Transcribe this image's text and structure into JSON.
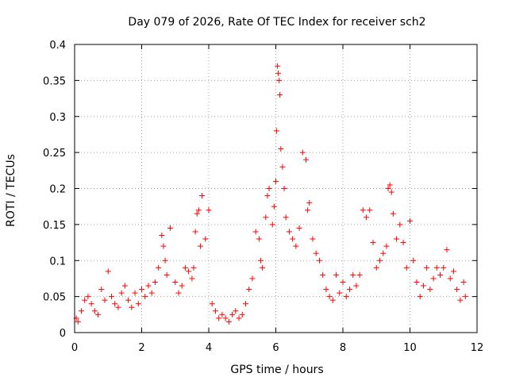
{
  "chart_data": {
    "type": "scatter",
    "title": "Day 079 of 2026, Rate Of TEC Index for receiver sch2",
    "xlabel": "GPS time / hours",
    "ylabel": "ROTI / TECUs",
    "xlim": [
      0,
      12
    ],
    "ylim": [
      0,
      0.4
    ],
    "xticks": [
      "0",
      "2",
      "4",
      "6",
      "8",
      "10",
      "12"
    ],
    "yticks": [
      "0",
      "0.05",
      "0.1",
      "0.15",
      "0.2",
      "0.25",
      "0.3",
      "0.35",
      "0.4"
    ],
    "grid": true,
    "marker": "+",
    "color": "#ff0000",
    "series": [
      {
        "x": [
          0.05,
          0.1,
          0.2,
          0.3,
          0.4,
          0.5,
          0.6,
          0.7,
          0.8,
          0.9,
          1.0,
          1.1,
          1.2,
          1.3,
          1.4,
          1.5,
          1.6,
          1.7,
          1.8,
          1.9,
          2.0,
          2.1,
          2.2,
          2.3,
          2.4,
          2.5,
          2.6,
          2.65,
          2.7,
          2.75,
          2.85,
          3.0,
          3.1,
          3.2,
          3.3,
          3.4,
          3.5,
          3.55,
          3.6,
          3.65,
          3.7,
          3.75,
          3.8,
          3.9,
          4.0,
          4.1,
          4.2,
          4.3,
          4.4,
          4.5,
          4.6,
          4.7,
          4.8,
          4.9,
          5.0,
          5.1,
          5.2,
          5.3,
          5.4,
          5.5,
          5.55,
          5.6,
          5.7,
          5.75,
          5.8,
          5.9,
          5.95,
          6.0,
          6.02,
          6.05,
          6.07,
          6.1,
          6.12,
          6.15,
          6.2,
          6.25,
          6.3,
          6.4,
          6.5,
          6.6,
          6.7,
          6.8,
          6.9,
          6.95,
          7.0,
          7.1,
          7.2,
          7.3,
          7.4,
          7.5,
          7.6,
          7.7,
          7.8,
          7.9,
          8.0,
          8.1,
          8.2,
          8.3,
          8.4,
          8.5,
          8.6,
          8.7,
          8.8,
          8.9,
          9.0,
          9.1,
          9.2,
          9.3,
          9.35,
          9.4,
          9.45,
          9.5,
          9.6,
          9.7,
          9.8,
          9.9,
          10.0,
          10.1,
          10.2,
          10.3,
          10.4,
          10.5,
          10.6,
          10.7,
          10.8,
          10.9,
          11.0,
          11.1,
          11.2,
          11.3,
          11.4,
          11.5,
          11.6,
          11.65
        ],
        "y": [
          0.02,
          0.015,
          0.03,
          0.045,
          0.05,
          0.04,
          0.03,
          0.025,
          0.06,
          0.045,
          0.085,
          0.05,
          0.04,
          0.035,
          0.055,
          0.065,
          0.045,
          0.035,
          0.055,
          0.04,
          0.06,
          0.05,
          0.065,
          0.055,
          0.07,
          0.09,
          0.135,
          0.12,
          0.1,
          0.08,
          0.145,
          0.07,
          0.055,
          0.065,
          0.09,
          0.085,
          0.075,
          0.09,
          0.14,
          0.165,
          0.17,
          0.12,
          0.19,
          0.13,
          0.17,
          0.04,
          0.03,
          0.02,
          0.025,
          0.02,
          0.015,
          0.025,
          0.03,
          0.02,
          0.025,
          0.04,
          0.06,
          0.075,
          0.14,
          0.13,
          0.1,
          0.09,
          0.16,
          0.19,
          0.2,
          0.15,
          0.175,
          0.21,
          0.28,
          0.37,
          0.36,
          0.35,
          0.33,
          0.255,
          0.23,
          0.2,
          0.16,
          0.14,
          0.13,
          0.12,
          0.145,
          0.25,
          0.24,
          0.17,
          0.18,
          0.13,
          0.11,
          0.1,
          0.08,
          0.06,
          0.05,
          0.045,
          0.08,
          0.055,
          0.07,
          0.05,
          0.06,
          0.08,
          0.065,
          0.08,
          0.17,
          0.16,
          0.17,
          0.125,
          0.09,
          0.1,
          0.11,
          0.12,
          0.2,
          0.205,
          0.195,
          0.165,
          0.13,
          0.15,
          0.125,
          0.09,
          0.155,
          0.1,
          0.07,
          0.05,
          0.065,
          0.09,
          0.06,
          0.075,
          0.09,
          0.08,
          0.09,
          0.115,
          0.075,
          0.085,
          0.06,
          0.045,
          0.07,
          0.05
        ]
      }
    ]
  }
}
